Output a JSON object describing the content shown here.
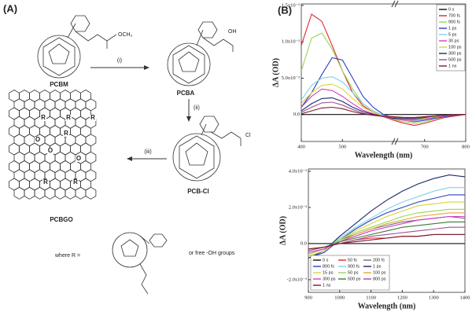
{
  "panel_a": {
    "label": "(A)",
    "pcbm": "PCBM",
    "pcbm_group": "OCH₃",
    "step1": "(i)",
    "pcba": "PCBA",
    "pcba_group": "OH",
    "step2": "(ii)",
    "pcbcl": "PCB-Cl",
    "pcbcl_group": "Cl",
    "step3": "(iii)",
    "pcbgo": "PCBGO",
    "graphene_labels": [
      "R",
      "R",
      "R",
      "O",
      "R",
      "O",
      "O",
      "R",
      "R"
    ],
    "where": "where R =",
    "or_text": "or free -OH groups"
  },
  "panel_b": {
    "label": "(B)"
  },
  "chart_data": [
    {
      "type": "line",
      "xlabel": "Wavelength (nm)",
      "ylabel": "ΔA (OD)",
      "legend": "upper right",
      "x": [
        400,
        425,
        450,
        475,
        500,
        525,
        550,
        575,
        600,
        625,
        650,
        675,
        700,
        725,
        750,
        775,
        800
      ],
      "xlim": [
        400,
        800
      ],
      "xticks": [
        400,
        500,
        700,
        800
      ],
      "ylim": [
        -0.0037,
        0.0152
      ],
      "yticks": [
        {
          "value": 0,
          "label": "0.0"
        },
        {
          "value": 0.005,
          "label": "5.0x10⁻³"
        },
        {
          "value": 0.01,
          "label": "1.0x10⁻²"
        },
        {
          "value": 0.015,
          "label": "1.5x10⁻²"
        }
      ],
      "series": [
        {
          "name": "0 s",
          "color": "#111111",
          "values": [
            0,
            0,
            0,
            0,
            0,
            0,
            0,
            0,
            0,
            0,
            0,
            0,
            0,
            0,
            0,
            0,
            0
          ]
        },
        {
          "name": "700 fs",
          "color": "#e0262b",
          "values": [
            0.0095,
            0.0138,
            0.0128,
            0.0095,
            0.006,
            0.003,
            0.0012,
            0.0003,
            -0.0003,
            -0.0008,
            -0.0012,
            -0.0015,
            -0.0012,
            -0.0008,
            -0.0004,
            -0.0002,
            0
          ]
        },
        {
          "name": "900 fs",
          "color": "#9bd45a",
          "values": [
            0.006,
            0.0105,
            0.0112,
            0.009,
            0.006,
            0.0035,
            0.0015,
            0.0005,
            -0.0002,
            -0.0007,
            -0.001,
            -0.0012,
            -0.001,
            -0.0006,
            -0.0003,
            -0.0001,
            0
          ]
        },
        {
          "name": "1 ps",
          "color": "#2a3fbf",
          "values": [
            0.001,
            0.003,
            0.0055,
            0.0078,
            0.0075,
            0.005,
            0.0025,
            0.001,
            0,
            -0.0005,
            -0.0008,
            -0.001,
            -0.0008,
            -0.0005,
            -0.0003,
            -0.0001,
            0
          ]
        },
        {
          "name": "5 ps",
          "color": "#7fd3ea",
          "values": [
            0.002,
            0.004,
            0.005,
            0.0052,
            0.0045,
            0.003,
            0.0015,
            0.0005,
            -0.0001,
            -0.0005,
            -0.0008,
            -0.0009,
            -0.0007,
            -0.0004,
            -0.0002,
            0,
            0
          ]
        },
        {
          "name": "30 ps",
          "color": "#d23fc9",
          "values": [
            0.001,
            0.0025,
            0.0035,
            0.0033,
            0.0025,
            0.0015,
            0.0006,
            0.0001,
            -0.0003,
            -0.0006,
            -0.0008,
            -0.0008,
            -0.0006,
            -0.0004,
            -0.0002,
            0,
            0
          ]
        },
        {
          "name": "100 ps",
          "color": "#d8d63a",
          "values": [
            0.0015,
            0.003,
            0.004,
            0.0042,
            0.0035,
            0.0022,
            0.001,
            0.0003,
            -0.0002,
            -0.0005,
            -0.0007,
            -0.0007,
            -0.0005,
            -0.0003,
            -0.0001,
            0,
            0
          ]
        },
        {
          "name": "300 ps",
          "color": "#1b2a6b",
          "values": [
            0.0005,
            0.0015,
            0.0022,
            0.0023,
            0.0018,
            0.001,
            0.0004,
            0,
            -0.0003,
            -0.0005,
            -0.0006,
            -0.0006,
            -0.0004,
            -0.0002,
            -0.0001,
            0,
            0
          ]
        },
        {
          "name": "500 ps",
          "color": "#a0508f",
          "values": [
            0.0003,
            0.001,
            0.0016,
            0.0017,
            0.0013,
            0.0007,
            0.0002,
            -0.0001,
            -0.0003,
            -0.0004,
            -0.0005,
            -0.0005,
            -0.0003,
            -0.0002,
            -0.0001,
            0,
            0
          ]
        },
        {
          "name": "1 ns",
          "color": "#7a1a2a",
          "values": [
            0.0001,
            0.0005,
            0.0009,
            0.001,
            0.0008,
            0.0004,
            0.0001,
            -0.0001,
            -0.0002,
            -0.0003,
            -0.0004,
            -0.0004,
            -0.0003,
            -0.0002,
            -0.0001,
            0,
            0
          ]
        }
      ]
    },
    {
      "type": "line",
      "xlabel": "Wavelength (nm)",
      "ylabel": "ΔA (OD)",
      "legend": "lower left",
      "x": [
        900,
        950,
        1000,
        1050,
        1100,
        1150,
        1200,
        1250,
        1300,
        1350,
        1400
      ],
      "xlim": [
        900,
        1400
      ],
      "xticks": [
        900,
        1000,
        1100,
        1200,
        1300,
        1400
      ],
      "ylim": [
        -0.0027,
        0.00413
      ],
      "yticks": [
        {
          "value": -0.002,
          "label": "-2.0x10⁻³"
        },
        {
          "value": 0,
          "label": "0.0"
        },
        {
          "value": 0.002,
          "label": "2.0x10⁻³"
        },
        {
          "value": 0.004,
          "label": "4.0x10⁻³"
        }
      ],
      "series": [
        {
          "name": "0 s",
          "color": "#111111",
          "values": [
            0,
            0,
            0,
            0,
            0,
            0,
            0,
            0,
            0,
            0,
            0
          ]
        },
        {
          "name": "50 fs",
          "color": "#e0262b",
          "values": [
            -0.0003,
            -0.0002,
            0,
            0.0002,
            0.0003,
            0.0003,
            0.0004,
            0.0004,
            0.0005,
            0.0005,
            0.0005
          ]
        },
        {
          "name": "200 fs",
          "color": "#6e6e6e",
          "values": [
            -0.0005,
            -0.0003,
            0.0002,
            0.0005,
            0.0008,
            0.001,
            0.0012,
            0.0013,
            0.0014,
            0.0015,
            0.0014
          ]
        },
        {
          "name": "800 fs",
          "color": "#2a3fbf",
          "values": [
            -0.0008,
            -0.0005,
            0.0002,
            0.0008,
            0.0013,
            0.0017,
            0.002,
            0.0023,
            0.0025,
            0.0027,
            0.0027
          ]
        },
        {
          "name": "900 fs",
          "color": "#7fd3ea",
          "values": [
            -0.0006,
            -0.0003,
            0.0003,
            0.0009,
            0.0014,
            0.0019,
            0.0023,
            0.0026,
            0.0029,
            0.0031,
            0.0031
          ]
        },
        {
          "name": "1 ps",
          "color": "#1b2a6b",
          "values": [
            -0.0008,
            -0.0004,
            0.0004,
            0.0011,
            0.0018,
            0.0024,
            0.0029,
            0.0033,
            0.0036,
            0.0038,
            0.0037
          ]
        },
        {
          "name": "15 ps",
          "color": "#d8d63a",
          "values": [
            -0.0007,
            -0.0004,
            0.0002,
            0.0007,
            0.0011,
            0.0015,
            0.0018,
            0.0021,
            0.0022,
            0.0023,
            0.0023
          ]
        },
        {
          "name": "50 ps",
          "color": "#9bd45a",
          "values": [
            -0.0006,
            -0.0003,
            0.0002,
            0.0006,
            0.0009,
            0.0012,
            0.0015,
            0.0017,
            0.0018,
            0.0019,
            0.0019
          ]
        },
        {
          "name": "100 ps",
          "color": "#e8a33a",
          "values": [
            -0.0005,
            -0.0003,
            0.0001,
            0.0005,
            0.0008,
            0.0011,
            0.0013,
            0.0015,
            0.0016,
            0.0017,
            0.0017
          ]
        },
        {
          "name": "300 ps",
          "color": "#d23fc9",
          "values": [
            -0.0005,
            -0.0003,
            0.0001,
            0.0004,
            0.0007,
            0.0009,
            0.0011,
            0.0013,
            0.0014,
            0.0015,
            0.0015
          ]
        },
        {
          "name": "500 ps",
          "color": "#3b7a3a",
          "values": [
            -0.0004,
            -0.0002,
            0.0001,
            0.0003,
            0.0005,
            0.0007,
            0.0009,
            0.001,
            0.0011,
            0.0012,
            0.0012
          ]
        },
        {
          "name": "800 ps",
          "color": "#a0508f",
          "values": [
            -0.0004,
            -0.0002,
            0,
            0.0002,
            0.0004,
            0.0005,
            0.0006,
            0.0007,
            0.0008,
            0.0009,
            0.0009
          ]
        },
        {
          "name": "1 ns",
          "color": "#7a1a2a",
          "values": [
            -0.0003,
            -0.0002,
            0,
            0.0001,
            0.0002,
            0.0003,
            0.0004,
            0.0004,
            0.0005,
            0.0005,
            0.0005
          ]
        }
      ]
    }
  ]
}
